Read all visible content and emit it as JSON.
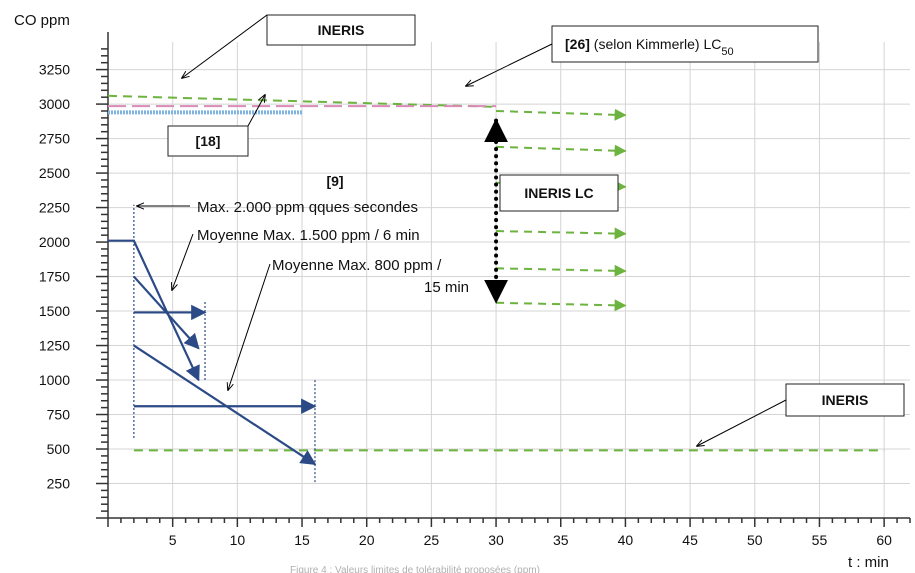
{
  "chart_data": {
    "type": "line",
    "ylabel": "CO ppm",
    "xlabel": "t : min",
    "xlim": [
      0,
      62
    ],
    "ylim": [
      0,
      3450
    ],
    "x_ticks": [
      5,
      10,
      15,
      20,
      25,
      30,
      35,
      40,
      45,
      50,
      55,
      60
    ],
    "y_ticks": [
      250,
      500,
      750,
      1000,
      1250,
      1500,
      1750,
      2000,
      2250,
      2500,
      2750,
      3000,
      3250
    ],
    "grid": true,
    "colors": {
      "green": "#6db33f",
      "navy": "#2b4a86",
      "pink": "#d98ab7",
      "light_blue": "#7fb3e0",
      "grid": "#d4d4d4",
      "black": "#000000"
    },
    "series": [
      {
        "style": "green-dashed",
        "x": [
          0,
          30
        ],
        "y": [
          3060,
          2980
        ]
      },
      {
        "style": "pink-dashed",
        "x": [
          0,
          30
        ],
        "y": [
          2985,
          2985
        ]
      },
      {
        "style": "light-blue-double",
        "x": [
          0,
          15
        ],
        "y": [
          2940,
          2940
        ]
      },
      {
        "style": "green-dashed",
        "x": [
          2,
          60
        ],
        "y": [
          490,
          490
        ]
      },
      {
        "style": "navy",
        "x": [
          0,
          2,
          7
        ],
        "y": [
          2010,
          2010,
          1000
        ]
      },
      {
        "style": "navy",
        "x": [
          2,
          7
        ],
        "y": [
          1750,
          1230
        ]
      },
      {
        "style": "navy",
        "x": [
          2,
          7.5
        ],
        "y": [
          1490,
          1490
        ]
      },
      {
        "style": "navy",
        "x": [
          2,
          16
        ],
        "y": [
          1250,
          390
        ]
      },
      {
        "style": "navy",
        "x": [
          2,
          16
        ],
        "y": [
          810,
          810
        ]
      }
    ],
    "green_arrows": [
      {
        "x": [
          30,
          40
        ],
        "y": [
          2950,
          2920
        ]
      },
      {
        "x": [
          30,
          40
        ],
        "y": [
          2690,
          2660
        ]
      },
      {
        "x": [
          30,
          40
        ],
        "y": [
          2430,
          2400
        ]
      },
      {
        "x": [
          30,
          40
        ],
        "y": [
          2080,
          2060
        ]
      },
      {
        "x": [
          30,
          40
        ],
        "y": [
          1810,
          1790
        ]
      },
      {
        "x": [
          30,
          40
        ],
        "y": [
          1560,
          1540
        ]
      }
    ],
    "vertical_markers": [
      {
        "x": 2,
        "y": [
          580,
          2270
        ]
      },
      {
        "x": 7.5,
        "y": [
          1000,
          1570
        ]
      },
      {
        "x": 16,
        "y": [
          260,
          1010
        ]
      }
    ],
    "annotations": {
      "box_ineris_top": "INERIS",
      "box_26_ref": "[26]",
      "box_26_text": " (selon Kimmerle) LC",
      "box_26_sub": "50",
      "box_18": "[18]",
      "label_9": "[9]",
      "box_ineris_lc": "INERIS LC",
      "box_ineris_bottom": "INERIS",
      "max_2000": "Max. 2.000 ppm qques secondes",
      "moy_1500": "Moyenne Max. 1.500 ppm / 6 min",
      "moy_800_line1": "Moyenne Max. 800 ppm /",
      "moy_800_line2": "15 min"
    },
    "caption": "Figure 4 : Valeurs limites de tolérabilité proposées (ppm)"
  }
}
